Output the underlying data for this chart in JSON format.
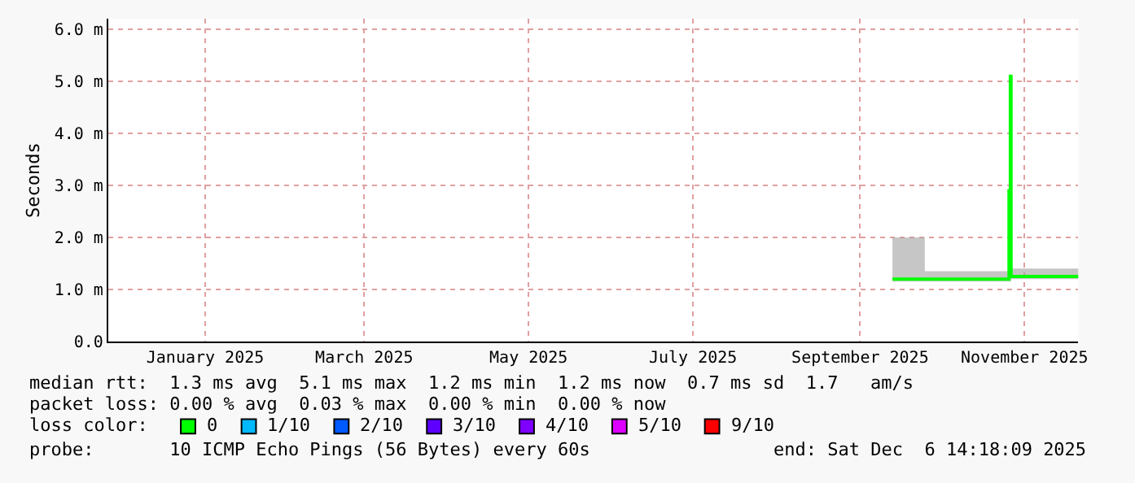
{
  "chart_data": {
    "type": "line",
    "ylabel": "Seconds",
    "legend_title": "loss color:",
    "legend": "bottom",
    "xlim": [
      "2024-12-11",
      "2025-12-06"
    ],
    "xticks": [
      {
        "value": "2025-01-16",
        "label": "January 2025"
      },
      {
        "value": "2025-03-16",
        "label": "March 2025"
      },
      {
        "value": "2025-05-16",
        "label": "May 2025"
      },
      {
        "value": "2025-07-16",
        "label": "July 2025"
      },
      {
        "value": "2025-09-16",
        "label": "September 2025"
      },
      {
        "value": "2025-11-16",
        "label": "November 2025"
      }
    ],
    "ylim": [
      0,
      6.2
    ],
    "yticks": [
      {
        "value": 0,
        "label": "0.0"
      },
      {
        "value": 1,
        "label": "1.0 m"
      },
      {
        "value": 2,
        "label": "2.0 m"
      },
      {
        "value": 3,
        "label": "3.0 m"
      },
      {
        "value": 4,
        "label": "4.0 m"
      },
      {
        "value": 5,
        "label": "5.0 m"
      },
      {
        "value": 6,
        "label": "6.0 m"
      }
    ],
    "grid": true,
    "series": [
      {
        "name": "0",
        "color": "#00ff00",
        "x": [
          "2025-09-28",
          "2025-10-10",
          "2025-10-25",
          "2025-11-09",
          "2025-11-10T06:00",
          "2025-11-10T18:00",
          "2025-11-11",
          "2025-11-20",
          "2025-12-06"
        ],
        "values": [
          1.2,
          1.2,
          1.2,
          1.2,
          2.9,
          5.1,
          1.25,
          1.25,
          1.25
        ],
        "lower": [
          1.15,
          1.15,
          1.15,
          1.15,
          1.15,
          1.15,
          1.2,
          1.2,
          1.2
        ],
        "upper": [
          2.0,
          1.35,
          1.35,
          1.35,
          2.9,
          5.1,
          1.4,
          1.4,
          1.4
        ]
      },
      {
        "name": "1/10",
        "color": "#00b8ff"
      },
      {
        "name": "2/10",
        "color": "#0059ff"
      },
      {
        "name": "3/10",
        "color": "#5e00ff"
      },
      {
        "name": "4/10",
        "color": "#7e00ff"
      },
      {
        "name": "5/10",
        "color": "#dd00ff"
      },
      {
        "name": "9/10",
        "color": "#ff0000"
      }
    ],
    "annotations": [
      "median rtt:  1.3 ms avg  5.1 ms max  1.2 ms min  1.2 ms now  0.7 ms sd  1.7   am/s",
      "packet loss: 0.00 % avg  0.03 % max  0.00 % min  0.00 % now",
      "probe:       10 ICMP Echo Pings (56 Bytes) every 60s",
      "end: Sat Dec  6 14:18:09 2025"
    ]
  }
}
